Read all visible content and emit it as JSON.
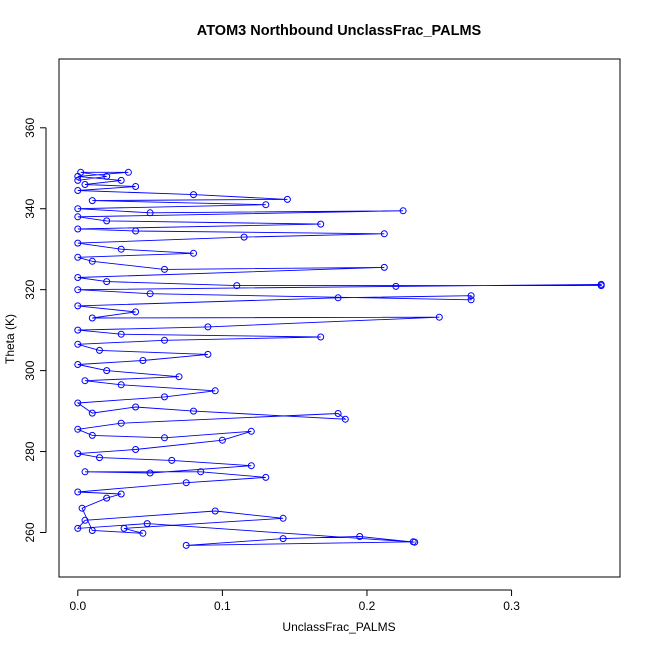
{
  "chart_data": {
    "type": "scatter",
    "title": "ATOM3 Northbound UnclassFrac_PALMS",
    "xlabel": "UnclassFrac_PALMS",
    "ylabel": "Theta (K)",
    "xlim": [
      -0.013,
      0.375
    ],
    "ylim": [
      249,
      377
    ],
    "x_ticks": [
      0.0,
      0.1,
      0.2,
      0.3
    ],
    "x_tick_labels": [
      "0.0",
      "0.1",
      "0.2",
      "0.3"
    ],
    "y_ticks": [
      260,
      280,
      300,
      320,
      340,
      360
    ],
    "y_tick_labels": [
      "260",
      "280",
      "300",
      "320",
      "340",
      "360"
    ],
    "grid": false,
    "legend": "none",
    "connected": true,
    "series": [
      {
        "color": "#0000ff",
        "points": [
          [
            0.232,
            257.7
          ],
          [
            0.075,
            256.8
          ],
          [
            0.142,
            258.5
          ],
          [
            0.195,
            259.0
          ],
          [
            0.233,
            257.6
          ],
          [
            0.048,
            262.2
          ],
          [
            0.0,
            261.0
          ],
          [
            0.005,
            263.0
          ],
          [
            0.095,
            265.3
          ],
          [
            0.142,
            263.5
          ],
          [
            0.032,
            261.0
          ],
          [
            0.045,
            259.8
          ],
          [
            0.01,
            260.5
          ],
          [
            0.003,
            266.0
          ],
          [
            0.02,
            268.5
          ],
          [
            0.03,
            269.5
          ],
          [
            0.0,
            270.0
          ],
          [
            0.075,
            272.3
          ],
          [
            0.13,
            273.6
          ],
          [
            0.085,
            275.0
          ],
          [
            0.005,
            275.0
          ],
          [
            0.05,
            274.7
          ],
          [
            0.12,
            276.5
          ],
          [
            0.065,
            277.8
          ],
          [
            0.015,
            278.5
          ],
          [
            0.0,
            279.5
          ],
          [
            0.04,
            280.5
          ],
          [
            0.1,
            282.8
          ],
          [
            0.12,
            285.0
          ],
          [
            0.06,
            283.4
          ],
          [
            0.01,
            284.0
          ],
          [
            0.0,
            285.5
          ],
          [
            0.03,
            287.0
          ],
          [
            0.18,
            289.4
          ],
          [
            0.185,
            288.0
          ],
          [
            0.08,
            290.0
          ],
          [
            0.04,
            291.0
          ],
          [
            0.01,
            289.5
          ],
          [
            0.0,
            292.0
          ],
          [
            0.06,
            293.5
          ],
          [
            0.095,
            295.0
          ],
          [
            0.03,
            296.5
          ],
          [
            0.005,
            297.5
          ],
          [
            0.07,
            298.5
          ],
          [
            0.02,
            300.0
          ],
          [
            0.0,
            301.5
          ],
          [
            0.045,
            302.5
          ],
          [
            0.09,
            304.0
          ],
          [
            0.015,
            305.0
          ],
          [
            0.0,
            306.5
          ],
          [
            0.06,
            307.5
          ],
          [
            0.168,
            308.3
          ],
          [
            0.03,
            309.0
          ],
          [
            0.0,
            310.0
          ],
          [
            0.09,
            310.8
          ],
          [
            0.25,
            313.2
          ],
          [
            0.01,
            313.0
          ],
          [
            0.04,
            314.5
          ],
          [
            0.0,
            316.0
          ],
          [
            0.18,
            318.0
          ],
          [
            0.272,
            318.5
          ],
          [
            0.272,
            317.5
          ],
          [
            0.05,
            319.0
          ],
          [
            0.0,
            320.0
          ],
          [
            0.22,
            320.8
          ],
          [
            0.362,
            321.3
          ],
          [
            0.362,
            321.0
          ],
          [
            0.11,
            321.0
          ],
          [
            0.02,
            322.0
          ],
          [
            0.0,
            323.0
          ],
          [
            0.212,
            325.5
          ],
          [
            0.06,
            325.0
          ],
          [
            0.01,
            327.0
          ],
          [
            0.0,
            328.0
          ],
          [
            0.08,
            329.0
          ],
          [
            0.03,
            330.0
          ],
          [
            0.0,
            331.5
          ],
          [
            0.115,
            333.0
          ],
          [
            0.212,
            333.8
          ],
          [
            0.04,
            334.5
          ],
          [
            0.0,
            335.0
          ],
          [
            0.168,
            336.2
          ],
          [
            0.02,
            337.0
          ],
          [
            0.0,
            338.0
          ],
          [
            0.225,
            339.5
          ],
          [
            0.05,
            339.0
          ],
          [
            0.0,
            340.0
          ],
          [
            0.13,
            341.0
          ],
          [
            0.01,
            342.0
          ],
          [
            0.145,
            342.3
          ],
          [
            0.08,
            343.5
          ],
          [
            0.0,
            344.5
          ],
          [
            0.04,
            345.5
          ],
          [
            0.005,
            346.0
          ],
          [
            0.03,
            347.0
          ],
          [
            0.0,
            348.0
          ],
          [
            0.035,
            349.0
          ],
          [
            0.002,
            349.0
          ],
          [
            0.02,
            348.0
          ],
          [
            0.0,
            347.0
          ]
        ]
      }
    ]
  }
}
